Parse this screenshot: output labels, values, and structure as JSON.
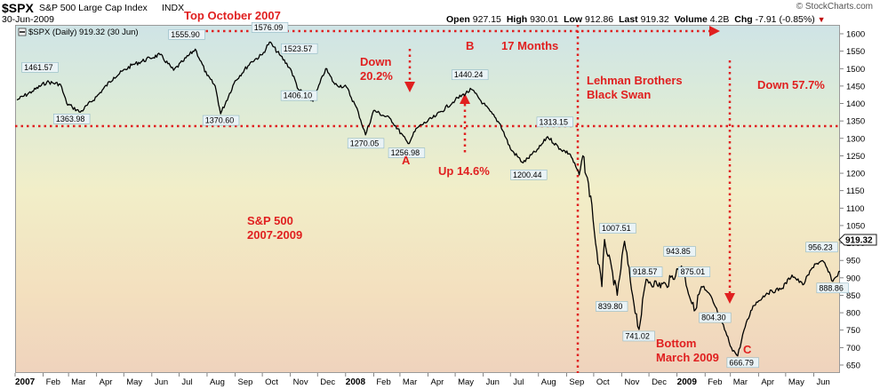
{
  "header": {
    "symbol": "$SPX",
    "name": "S&P 500 Large Cap Index",
    "exchange": "INDX",
    "date": "30-Jun-2009",
    "watermark": "© StockCharts.com",
    "quote": {
      "open_label": "Open",
      "open": "927.15",
      "high_label": "High",
      "high": "930.01",
      "low_label": "Low",
      "low": "912.86",
      "last_label": "Last",
      "last": "919.32",
      "volume_label": "Volume",
      "volume": "4.2B",
      "chg_label": "Chg",
      "chg": "-7.91 (-0.85%)"
    },
    "legend": "$SPX (Daily) 919.32 (30 Jun)"
  },
  "colors": {
    "annotation": "#e02020",
    "price_line": "#000000",
    "last_price_box_border": "#1a1a1a",
    "bg_top": "#cfe4e6",
    "bg_bottom": "#efd3bd"
  },
  "annotations": {
    "top": "Top October 2007",
    "months": "17 Months",
    "down1_line1": "Down",
    "down1_line2": "20.2%",
    "b": "B",
    "a": "A",
    "up": "Up 14.6%",
    "lehman_line1": "Lehman Brothers",
    "lehman_line2": "Black Swan",
    "down2": "Down 57.7%",
    "sp_line1": "S&P 500",
    "sp_line2": "2007-2009",
    "bottom_line1": "Bottom",
    "bottom_line2": "March 2009",
    "c": "C"
  },
  "price_labels": [
    "1461.57",
    "1363.98",
    "1555.90",
    "1370.60",
    "1576.09",
    "1523.57",
    "1406.10",
    "1270.05",
    "1256.98",
    "1440.24",
    "1313.15",
    "1200.44",
    "1007.51",
    "839.80",
    "943.85",
    "918.57",
    "741.02",
    "875.01",
    "804.30",
    "666.79",
    "956.23",
    "888.86"
  ],
  "chart_data": {
    "type": "line",
    "title": "$SPX (Daily) 919.32 (30 Jun)",
    "xlabel": "",
    "ylabel": "",
    "ylim": [
      630,
      1630
    ],
    "grid": false,
    "y_axis_position": "right",
    "y_ticks": [
      1600,
      1550,
      1500,
      1450,
      1400,
      1350,
      1300,
      1250,
      1200,
      1150,
      1100,
      1050,
      1000,
      950,
      900,
      850,
      800,
      750,
      700,
      650
    ],
    "x_tick_labels": [
      "2007",
      "Feb",
      "Mar",
      "Apr",
      "May",
      "Jun",
      "Jul",
      "Aug",
      "Sep",
      "Oct",
      "Nov",
      "Dec",
      "2008",
      "Feb",
      "Mar",
      "Apr",
      "May",
      "Jun",
      "Jul",
      "Aug",
      "Sep",
      "Oct",
      "Nov",
      "Dec",
      "2009",
      "Feb",
      "Mar",
      "Apr",
      "May",
      "Jun"
    ],
    "x_tick_dates": [
      "2007-01-01",
      "2007-02-01",
      "2007-03-01",
      "2007-04-01",
      "2007-05-01",
      "2007-06-01",
      "2007-07-01",
      "2007-08-01",
      "2007-09-01",
      "2007-10-01",
      "2007-11-01",
      "2007-12-01",
      "2008-01-01",
      "2008-02-01",
      "2008-03-01",
      "2008-04-01",
      "2008-05-01",
      "2008-06-01",
      "2008-07-01",
      "2008-08-01",
      "2008-09-01",
      "2008-10-01",
      "2008-11-01",
      "2008-12-01",
      "2009-01-01",
      "2009-02-01",
      "2009-03-01",
      "2009-04-01",
      "2009-05-01",
      "2009-06-01"
    ],
    "date_range": [
      "2007-01-01",
      "2009-06-30"
    ],
    "last_value": "919.32",
    "series": [
      {
        "x": [
          "2007-01-03",
          "2007-01-20",
          "2007-02-05",
          "2007-02-20",
          "2007-02-27",
          "2007-03-05",
          "2007-03-14",
          "2007-04-01",
          "2007-04-20",
          "2007-05-10",
          "2007-05-30",
          "2007-06-10",
          "2007-06-25",
          "2007-07-05",
          "2007-07-19",
          "2007-08-01",
          "2007-08-10",
          "2007-08-16",
          "2007-09-01",
          "2007-09-19",
          "2007-10-01",
          "2007-10-09",
          "2007-10-20",
          "2007-11-01",
          "2007-11-10",
          "2007-11-26",
          "2007-12-10",
          "2007-12-20",
          "2008-01-02",
          "2008-01-15",
          "2008-01-23",
          "2008-02-01",
          "2008-02-20",
          "2008-03-10",
          "2008-03-20",
          "2008-04-10",
          "2008-05-01",
          "2008-05-19",
          "2008-06-01",
          "2008-06-20",
          "2008-07-01",
          "2008-07-15",
          "2008-08-01",
          "2008-08-11",
          "2008-08-25",
          "2008-09-05",
          "2008-09-15",
          "2008-09-19",
          "2008-09-29",
          "2008-10-03",
          "2008-10-10",
          "2008-10-13",
          "2008-10-27",
          "2008-11-04",
          "2008-11-13",
          "2008-11-20",
          "2008-11-28",
          "2008-12-10",
          "2008-12-20",
          "2009-01-06",
          "2009-01-20",
          "2009-01-28",
          "2009-02-10",
          "2009-02-20",
          "2009-03-02",
          "2009-03-09",
          "2009-03-16",
          "2009-03-26",
          "2009-04-10",
          "2009-04-27",
          "2009-05-08",
          "2009-05-20",
          "2009-06-02",
          "2009-06-12",
          "2009-06-22",
          "2009-06-30"
        ],
        "y": [
          1410,
          1435,
          1461.57,
          1455,
          1400,
          1390,
          1375,
          1420,
          1475,
          1510,
          1530,
          1540,
          1495,
          1520,
          1555.9,
          1480,
          1450,
          1370.6,
          1465,
          1520,
          1540,
          1576.09,
          1540,
          1500,
          1440,
          1406.1,
          1500,
          1455,
          1447,
          1375,
          1310,
          1380,
          1355,
          1285,
          1330,
          1365,
          1410,
          1440.24,
          1400,
          1340,
          1270,
          1230,
          1270,
          1305,
          1270,
          1255,
          1195,
          1250,
          1110,
          1000,
          875,
          1010,
          850,
          1005,
          850,
          752,
          896,
          880,
          880,
          934,
          805,
          875,
          830,
          770,
          700,
          676,
          750,
          820,
          856,
          870,
          908,
          880,
          940,
          946,
          890,
          919.32
        ]
      }
    ]
  }
}
